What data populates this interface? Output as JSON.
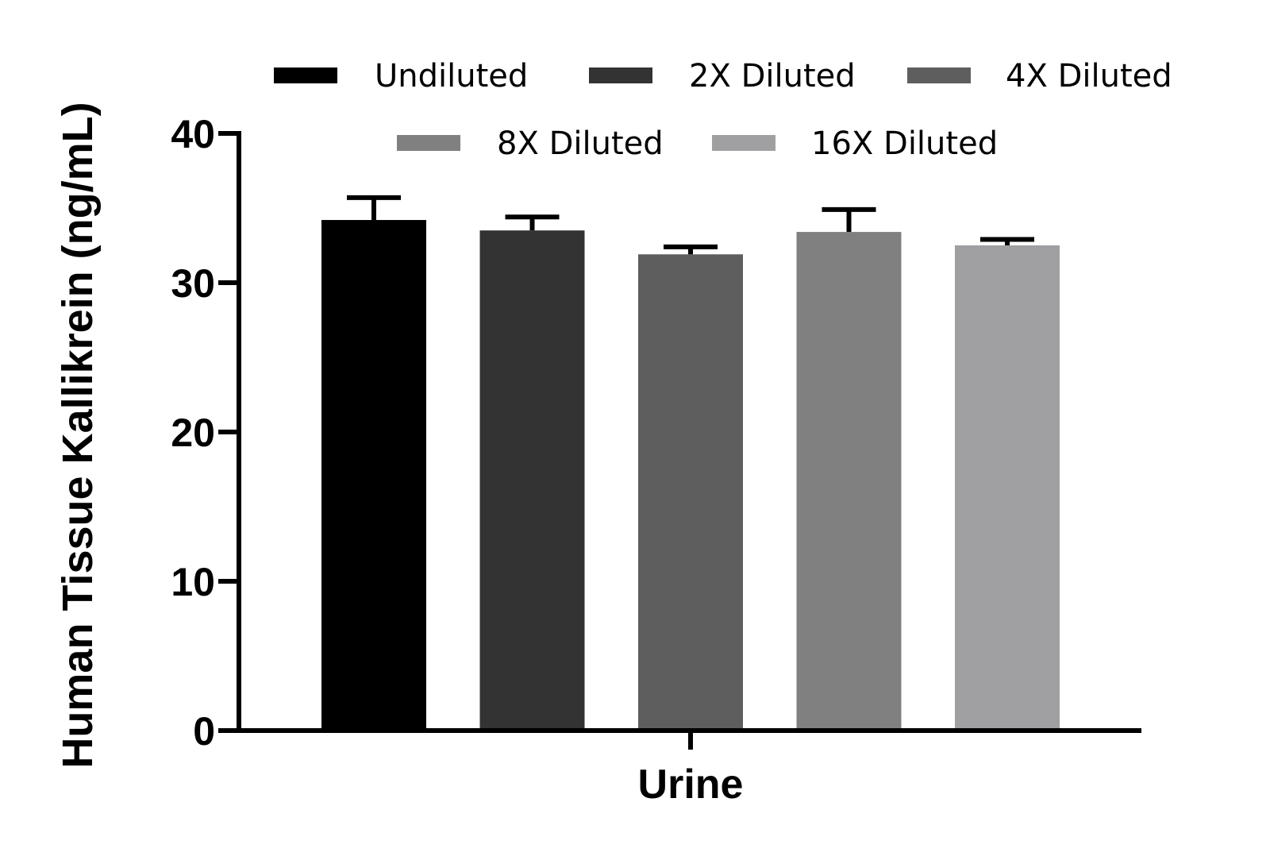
{
  "chart_data": {
    "type": "bar",
    "categories": [
      "Urine"
    ],
    "series": [
      {
        "name": "Undiluted",
        "values": [
          34.2
        ],
        "error": [
          1.5
        ],
        "color": "#000000"
      },
      {
        "name": "2X Diluted",
        "values": [
          33.5
        ],
        "error": [
          0.9
        ],
        "color": "#333333"
      },
      {
        "name": "4X Diluted",
        "values": [
          31.9
        ],
        "error": [
          0.5
        ],
        "color": "#5e5e5e"
      },
      {
        "name": "8X Diluted",
        "values": [
          33.4
        ],
        "error": [
          1.5
        ],
        "color": "#808080"
      },
      {
        "name": "16X Diluted",
        "values": [
          32.5
        ],
        "error": [
          0.4
        ],
        "color": "#a0a0a3"
      }
    ],
    "title": "",
    "xlabel": "Urine",
    "ylabel": "Human Tissue Kallikrein (ng/mL)",
    "ylim": [
      0,
      40
    ],
    "yticks": [
      0,
      10,
      20,
      30,
      40
    ],
    "grid": false,
    "legend_position": "top"
  }
}
